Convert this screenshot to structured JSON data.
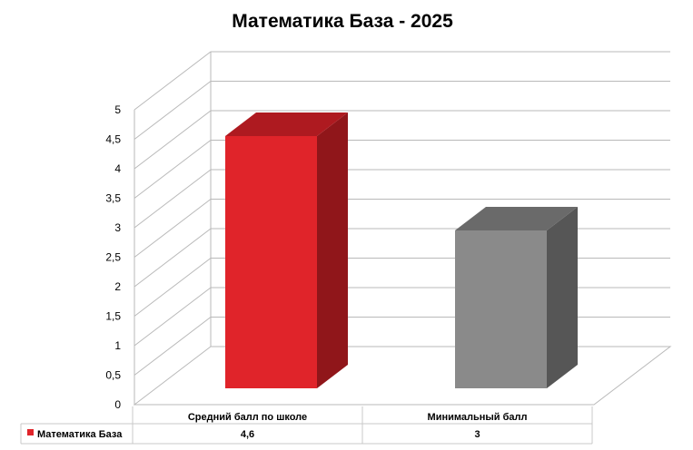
{
  "chart_data": {
    "type": "bar",
    "title": "Математика База - 2025",
    "categories": [
      "Средний балл по школе",
      "Минимальный  балл"
    ],
    "series": [
      {
        "name": "Математика  База",
        "values": [
          4.6,
          3
        ],
        "value_labels": [
          "4,6",
          "3"
        ]
      }
    ],
    "ylim": [
      0,
      5
    ],
    "yticks": [
      "0",
      "0,5",
      "1",
      "1,5",
      "2",
      "2,5",
      "3",
      "3,5",
      "4",
      "4,5",
      "5"
    ],
    "grid": true,
    "legend_placement": "data table",
    "colors": {
      "bar1_front": "#e0242a",
      "bar1_top": "#ae1a20",
      "bar1_side": "#90161a",
      "bar2_front": "#8a8a8a",
      "bar2_top": "#6a6a6a",
      "bar2_side": "#565656",
      "grid": "#b9b9b9",
      "legend_key": "#e0242a"
    }
  }
}
